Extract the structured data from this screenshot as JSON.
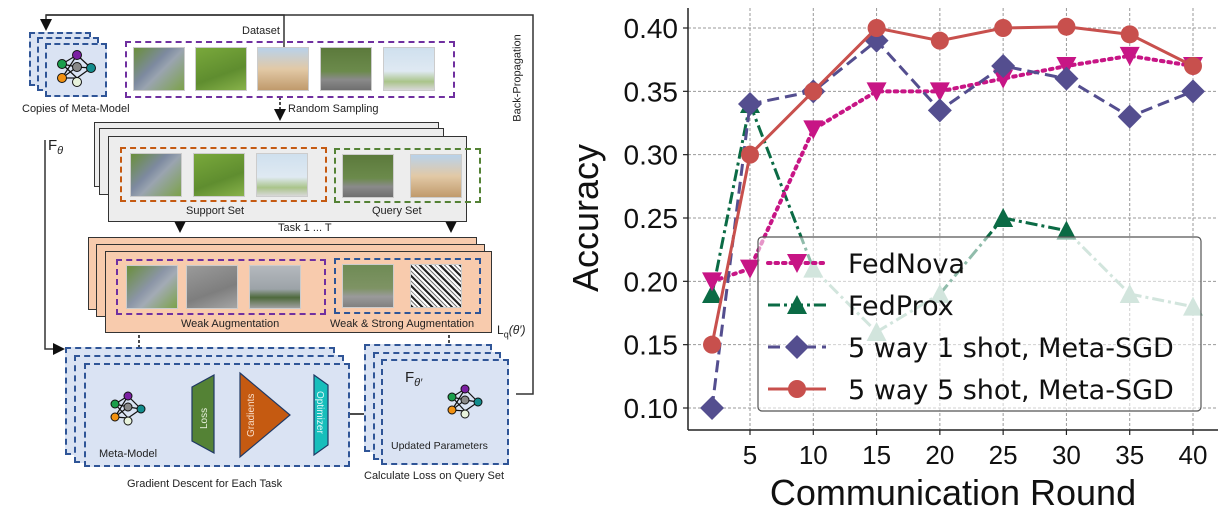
{
  "diagram": {
    "dataset_label": "Dataset",
    "copies_label": "Copies of Meta-Model",
    "random_sampling_label": "Random Sampling",
    "back_propagation_label": "Back-Propagation",
    "f_theta_label": "F",
    "f_theta_sub": "θ",
    "support_set_label": "Support Set",
    "query_set_label": "Query Set",
    "task_label": "Task 1 ... T",
    "weak_aug_label": "Weak Augmentation",
    "weak_strong_aug_label": "Weak & Strong Augmentation",
    "loss_query_label": "L",
    "loss_query_sub": "q",
    "loss_query_arg": "(θ′)",
    "meta_model_label": "Meta-Model",
    "loss_block_label": "Loss",
    "gradients_block_label": "Gradients",
    "optimizer_block_label": "Optimizer",
    "gradient_descent_label": "Gradient Descent for Each Task",
    "f_theta_prime_label": "F",
    "f_theta_prime_sub": "θ′",
    "updated_params_label": "Updated Parameters",
    "calc_loss_label": "Calculate Loss on Query Set",
    "colors": {
      "dataset_border": "#7030a0",
      "support_border": "#c55a11",
      "query_border": "#548235",
      "blue_border": "#2f5597",
      "blue_fill": "#dae3f3",
      "peach_fill": "#f8cbad",
      "loss_fill": "#548235",
      "gradients_fill": "#c55a11",
      "optimizer_fill": "#17bebb"
    }
  },
  "chart_data": {
    "type": "line",
    "title": "",
    "xlabel": "Communication Round",
    "ylabel": "Accuracy",
    "x": [
      2,
      5,
      10,
      15,
      20,
      25,
      30,
      35,
      40
    ],
    "xticks": [
      "5",
      "10",
      "15",
      "20",
      "25",
      "30",
      "35",
      "40"
    ],
    "xtick_values": [
      5,
      10,
      15,
      20,
      25,
      30,
      35,
      40
    ],
    "yticks": [
      "0.10",
      "0.15",
      "0.20",
      "0.25",
      "0.30",
      "0.35",
      "0.40"
    ],
    "ytick_values": [
      0.1,
      0.15,
      0.2,
      0.25,
      0.3,
      0.35,
      0.4
    ],
    "xlim": [
      0,
      41
    ],
    "ylim": [
      0.085,
      0.41
    ],
    "grid": true,
    "legend_position": "lower-right",
    "series": [
      {
        "name": "FedNova",
        "color": "#c71585",
        "marker": "triangle-down",
        "style": "dotted",
        "values": [
          0.2,
          0.21,
          0.32,
          0.35,
          0.35,
          0.36,
          0.37,
          0.378,
          0.37
        ]
      },
      {
        "name": "FedProx",
        "color": "#0b6b45",
        "faded_color": "#9cc5b4",
        "marker": "triangle-up",
        "style": "dashdot",
        "values": [
          0.19,
          0.34,
          0.21,
          0.16,
          0.19,
          0.25,
          0.24,
          0.19,
          0.18
        ]
      },
      {
        "name": "5 way 1 shot, Meta-SGD",
        "color": "#544e8f",
        "marker": "diamond",
        "style": "dashed",
        "values": [
          0.1,
          0.34,
          0.35,
          0.39,
          0.335,
          0.37,
          0.36,
          0.33,
          0.35
        ]
      },
      {
        "name": "5 way 5 shot, Meta-SGD",
        "color": "#c8504d",
        "marker": "circle",
        "style": "solid",
        "values": [
          0.15,
          0.3,
          0.35,
          0.4,
          0.39,
          0.4,
          0.401,
          0.395,
          0.37
        ]
      }
    ]
  }
}
